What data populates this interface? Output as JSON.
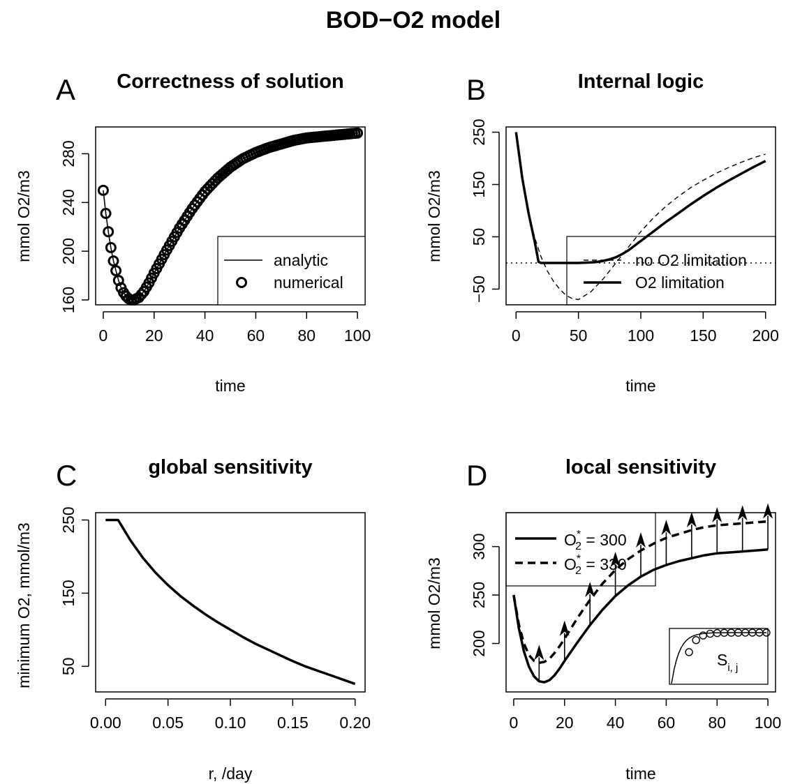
{
  "figure": {
    "title": "BOD−O2 model"
  },
  "chart_data": [
    {
      "panel": "A",
      "type": "line",
      "title": "Correctness of solution",
      "xlabel": "time",
      "ylabel": "mmol O2/m3",
      "xlim": [
        -3,
        103
      ],
      "ylim": [
        156,
        302
      ],
      "xticks": [
        0,
        20,
        40,
        60,
        80,
        100
      ],
      "yticks": [
        160,
        200,
        240,
        280
      ],
      "legend_position": "bottom-right",
      "series": [
        {
          "name": "analytic",
          "style": "solid-line",
          "x": [
            0,
            1,
            2,
            3,
            4,
            5,
            6,
            7,
            8,
            9,
            10,
            11,
            12,
            14,
            16,
            18,
            20,
            25,
            30,
            35,
            40,
            45,
            50,
            55,
            60,
            65,
            70,
            75,
            80,
            85,
            90,
            95,
            100
          ],
          "y": [
            250,
            231,
            216,
            203,
            192,
            184,
            176,
            170,
            166,
            163,
            161,
            160,
            160,
            162,
            167,
            174,
            182,
            201,
            219,
            235,
            249,
            260,
            269,
            276,
            281,
            285,
            288,
            291,
            293,
            294,
            295,
            296,
            297
          ]
        },
        {
          "name": "numerical",
          "style": "open-circles",
          "x": [
            0,
            1,
            2,
            3,
            4,
            5,
            6,
            7,
            8,
            9,
            10,
            11,
            12,
            14,
            16,
            18,
            20,
            25,
            30,
            35,
            40,
            45,
            50,
            55,
            60,
            65,
            70,
            75,
            80,
            85,
            90,
            95,
            100
          ],
          "y": [
            250,
            231,
            216,
            203,
            192,
            184,
            176,
            170,
            166,
            163,
            161,
            160,
            160,
            162,
            167,
            174,
            182,
            201,
            219,
            235,
            249,
            260,
            269,
            276,
            281,
            285,
            288,
            291,
            293,
            294,
            295,
            296,
            297
          ]
        }
      ]
    },
    {
      "panel": "B",
      "type": "line",
      "title": "Internal logic",
      "xlabel": "time",
      "ylabel": "mmol O2/m3",
      "xlim": [
        -8,
        208
      ],
      "ylim": [
        -80,
        260
      ],
      "xticks": [
        0,
        50,
        100,
        150,
        200
      ],
      "yticks": [
        -50,
        50,
        150,
        250
      ],
      "legend_position": "bottom-right",
      "series": [
        {
          "name": "no O2 limitation",
          "style": "dashed-line",
          "x": [
            0,
            5,
            10,
            15,
            20,
            25,
            30,
            35,
            40,
            45,
            50,
            60,
            70,
            80,
            90,
            100,
            110,
            120,
            130,
            140,
            150,
            160,
            170,
            180,
            190,
            200
          ],
          "y": [
            250,
            160,
            95,
            48,
            12,
            -15,
            -35,
            -50,
            -62,
            -68,
            -70,
            -55,
            -30,
            0,
            30,
            60,
            86,
            108,
            127,
            144,
            158,
            171,
            182,
            192,
            201,
            208
          ]
        },
        {
          "name": "O2 limitation",
          "style": "solid-line",
          "x": [
            0,
            5,
            10,
            15,
            18,
            20,
            30,
            40,
            50,
            60,
            65,
            70,
            75,
            80,
            85,
            90,
            100,
            110,
            120,
            130,
            140,
            150,
            160,
            170,
            180,
            190,
            200
          ],
          "y": [
            250,
            162,
            95,
            40,
            2,
            0,
            0,
            0,
            0,
            1,
            2,
            4,
            7,
            11,
            17,
            24,
            42,
            60,
            78,
            95,
            112,
            128,
            143,
            157,
            170,
            183,
            195
          ]
        },
        {
          "name": "",
          "style": "dotted-line",
          "x": [
            -8,
            208
          ],
          "y": [
            0,
            0
          ]
        }
      ]
    },
    {
      "panel": "C",
      "type": "line",
      "title": "global sensitivity",
      "xlabel": "r,  /day",
      "ylabel": "minimum O2,  mmol/m3",
      "xlim": [
        -0.008,
        0.208
      ],
      "ylim": [
        15,
        260
      ],
      "xticks": [
        0.0,
        0.05,
        0.1,
        0.15,
        0.2
      ],
      "xtick_labels": [
        "0.00",
        "0.05",
        "0.10",
        "0.15",
        "0.20"
      ],
      "yticks": [
        50,
        150,
        250
      ],
      "series": [
        {
          "name": "",
          "x": [
            0,
            0.005,
            0.01,
            0.015,
            0.02,
            0.03,
            0.04,
            0.05,
            0.06,
            0.07,
            0.08,
            0.09,
            0.1,
            0.11,
            0.12,
            0.13,
            0.14,
            0.15,
            0.16,
            0.17,
            0.18,
            0.19,
            0.2
          ],
          "y": [
            250,
            250,
            250,
            236,
            222,
            198,
            178,
            161,
            146,
            133,
            121,
            110,
            100,
            90,
            81,
            73,
            65,
            57,
            50,
            44,
            38,
            32,
            26
          ]
        }
      ]
    },
    {
      "panel": "D",
      "type": "line",
      "title": "local sensitivity",
      "xlabel": "time",
      "ylabel": "mmol O2/m3",
      "xlim": [
        -3,
        103
      ],
      "ylim": [
        150,
        335
      ],
      "xticks": [
        0,
        20,
        40,
        60,
        80,
        100
      ],
      "yticks": [
        200,
        250,
        300
      ],
      "legend_position": "top-left",
      "series": [
        {
          "name": "O2* = 300",
          "style": "solid-line",
          "x": [
            0,
            2,
            4,
            6,
            8,
            10,
            12,
            14,
            16,
            18,
            20,
            25,
            30,
            35,
            40,
            45,
            50,
            55,
            60,
            65,
            70,
            75,
            80,
            85,
            90,
            95,
            100
          ],
          "y": [
            250,
            216,
            192,
            176,
            166,
            161,
            160,
            162,
            167,
            174,
            182,
            201,
            219,
            235,
            249,
            260,
            269,
            276,
            281,
            285,
            288,
            291,
            293,
            294,
            295,
            296,
            297
          ]
        },
        {
          "name": "O2* = 330",
          "style": "dashed-line",
          "x": [
            0,
            2,
            4,
            6,
            8,
            10,
            12,
            14,
            16,
            18,
            20,
            25,
            30,
            35,
            40,
            45,
            50,
            55,
            60,
            65,
            70,
            75,
            80,
            85,
            90,
            95,
            100
          ],
          "y": [
            250,
            220,
            200,
            188,
            182,
            180,
            181,
            184,
            190,
            197,
            205,
            226,
            245,
            262,
            276,
            287,
            296,
            303,
            309,
            313,
            317,
            320,
            322,
            323,
            324,
            325,
            326
          ]
        }
      ],
      "arrows": {
        "x": [
          10,
          20,
          30,
          40,
          50,
          60,
          70,
          80,
          90,
          100
        ]
      },
      "inset": {
        "label_base": "S",
        "label_sub": "i, j"
      }
    }
  ]
}
